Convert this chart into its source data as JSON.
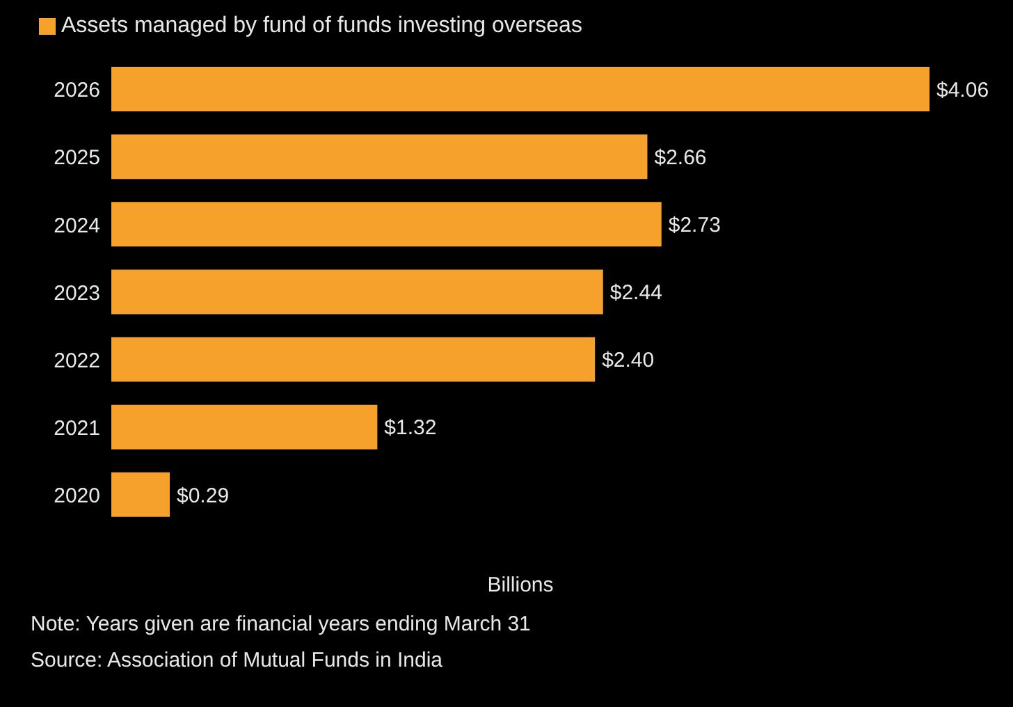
{
  "chart_data": {
    "type": "bar",
    "orientation": "horizontal",
    "xlabel": "Billions",
    "categories": [
      "2026",
      "2025",
      "2024",
      "2023",
      "2022",
      "2021",
      "2020"
    ],
    "series": [
      {
        "name": "Assets managed by fund of funds investing overseas",
        "color": "#f5a12b",
        "values": [
          4.06,
          2.66,
          2.73,
          2.44,
          2.4,
          1.32,
          0.29
        ],
        "value_labels": [
          "$4.06",
          "$2.66",
          "$2.73",
          "$2.44",
          "$2.40",
          "$1.32",
          "$0.29"
        ]
      }
    ],
    "legend": "top left",
    "grid": false,
    "annotations": [
      "Note: Years given are financial years ending March 31",
      "Source: Association of Mutual Funds in India"
    ]
  }
}
